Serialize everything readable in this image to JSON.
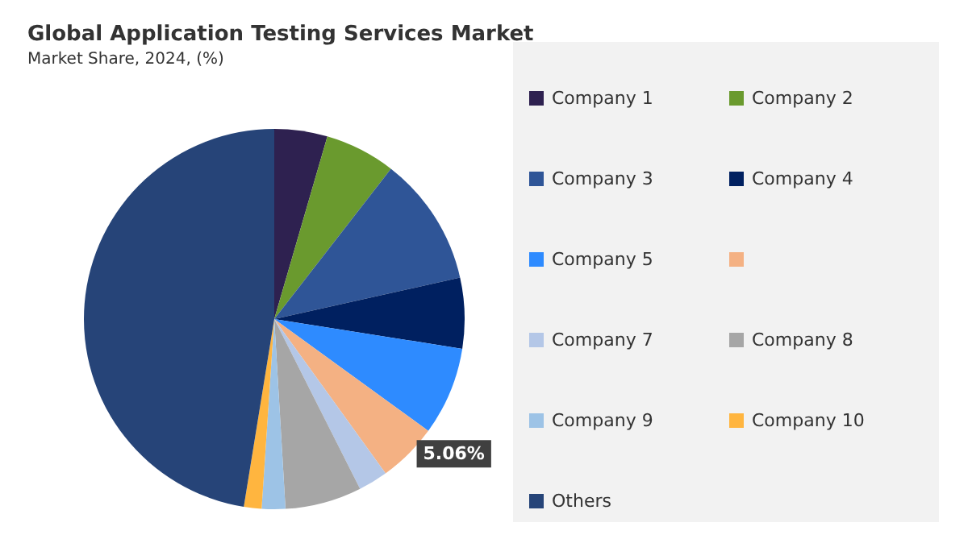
{
  "chart_data": {
    "type": "pie",
    "title": "Global Application Testing Services Market",
    "subtitle": "Market Share, 2024, (%)",
    "categories": [
      "Company 1",
      "Company 2",
      "Company 3",
      "Company 4",
      "Company 5",
      null,
      "Company 7",
      "Company 8",
      "Company 9",
      "Company 10",
      "Others"
    ],
    "values": [
      4.5,
      6,
      11,
      6,
      7.5,
      5.06,
      2.5,
      6.5,
      2,
      1.5,
      47.44
    ],
    "value_labels": [
      null,
      null,
      null,
      null,
      null,
      "5.06%",
      null,
      null,
      null,
      null,
      null
    ],
    "colors": [
      "#2e2150",
      "#6a9a2e",
      "#2f5597",
      "#002060",
      "#2e8bff",
      "#f4b183",
      "#b4c7e7",
      "#a6a6a6",
      "#9dc3e6",
      "#ffb53f",
      "#264478"
    ],
    "legend": "right"
  }
}
